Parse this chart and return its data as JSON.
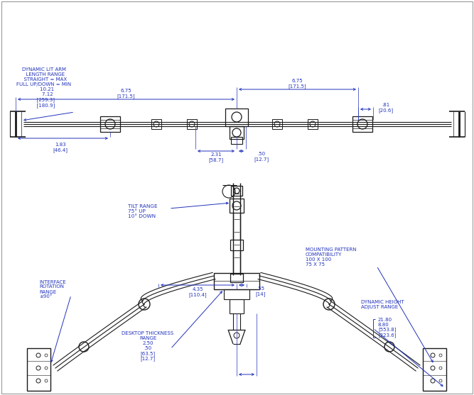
{
  "bg_color": "#ffffff",
  "line_color": "#1a1a1a",
  "blue_color": "#2233BB",
  "figsize": [
    6.67,
    5.57
  ],
  "dpi": 100,
  "annotations": {
    "dynamic_lit_arm": "DYNAMIC LIT ARM\n  LENGTH RANGE\n  STRAIGHT = MAX\nFULL UP/DOWN = MIN\n    10.21\n    7.12\n  [259.3]\n  [180.9]",
    "tilt_range": "TILT RANGE\n75° UP\n10° DOWN",
    "interface_rotation": "INTERFACE\nROTATION\nRANGE\n±90°",
    "mounting_pattern": "MOUNTING PATTERN\nCOMPATIBILITY\n100 X 100\n75 X 75",
    "dynamic_height": "DYNAMIC HEIGHT\nADJUST RANGE",
    "desktop_thickness": "DESKTOP THICKNESS\nRANGE\n2.50\n.50\n[63.5]\n[12.7]"
  }
}
